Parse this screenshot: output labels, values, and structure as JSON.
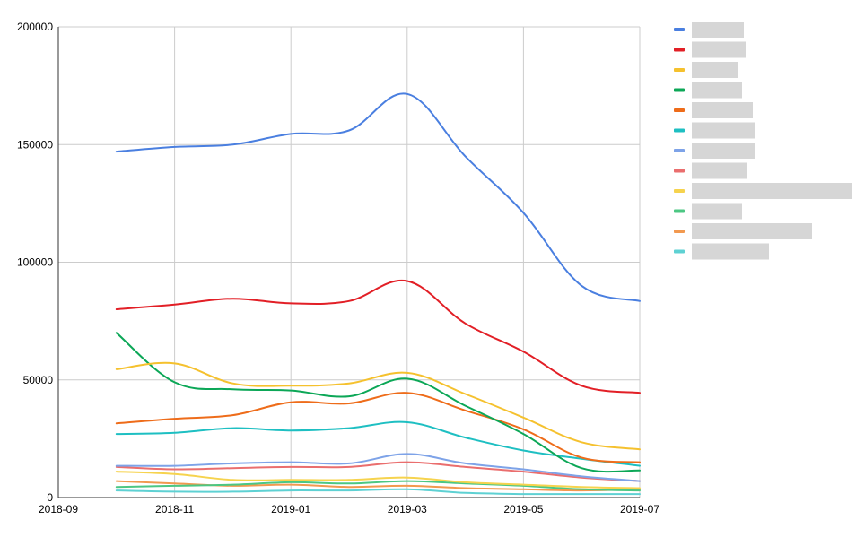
{
  "chart_data": {
    "type": "line",
    "title": "",
    "xlabel": "",
    "ylabel": "",
    "x_ticks": [
      "2018-09",
      "2018-11",
      "2019-01",
      "2019-03",
      "2019-05",
      "2019-07"
    ],
    "y_ticks": [
      "0",
      "50000",
      "100000",
      "150000",
      "200000"
    ],
    "ylim": [
      0,
      200000
    ],
    "xlim": [
      "2018-09",
      "2019-07"
    ],
    "x": [
      "2018-10",
      "2018-11",
      "2018-12",
      "2019-01",
      "2019-02",
      "2019-03",
      "2019-04",
      "2019-05",
      "2019-06",
      "2019-07"
    ],
    "grid": true,
    "legend_position": "right",
    "series": [
      {
        "color": "#4a7fe0",
        "values": [
          147000,
          149000,
          150000,
          154500,
          156000,
          171500,
          145000,
          121000,
          90000,
          83500
        ]
      },
      {
        "color": "#e21f26",
        "values": [
          80000,
          82000,
          84500,
          82500,
          83500,
          92000,
          74000,
          62000,
          47500,
          44500
        ]
      },
      {
        "color": "#f5c12e",
        "values": [
          54500,
          57000,
          48500,
          47500,
          48500,
          53000,
          44000,
          34000,
          23500,
          20500
        ]
      },
      {
        "color": "#0ca757",
        "values": [
          70000,
          49000,
          46000,
          45500,
          43000,
          50500,
          39000,
          27000,
          12500,
          11500
        ]
      },
      {
        "color": "#ee6c1a",
        "values": [
          31500,
          33500,
          35000,
          40500,
          40000,
          44500,
          37000,
          29000,
          17000,
          15000
        ]
      },
      {
        "color": "#1ebfc2",
        "values": [
          27000,
          27500,
          29500,
          28500,
          29500,
          32000,
          25500,
          20000,
          16500,
          13500
        ]
      },
      {
        "color": "#7ea3e8",
        "values": [
          13500,
          13500,
          14500,
          15000,
          14500,
          18500,
          14500,
          12000,
          9000,
          7000
        ]
      },
      {
        "color": "#ea6e6e",
        "values": [
          13000,
          12000,
          12500,
          13000,
          13000,
          15000,
          13000,
          11000,
          8500,
          7000
        ]
      },
      {
        "color": "#f6d34e",
        "values": [
          11000,
          10000,
          7500,
          7500,
          7500,
          8500,
          6500,
          5500,
          4500,
          4000
        ]
      },
      {
        "color": "#4cc783",
        "values": [
          4500,
          5000,
          5500,
          6500,
          6000,
          7000,
          6000,
          5000,
          3500,
          3000
        ]
      },
      {
        "color": "#f2994f",
        "values": [
          7000,
          6000,
          5000,
          5500,
          4500,
          5000,
          4000,
          3500,
          3000,
          3500
        ]
      },
      {
        "color": "#5ed1d3",
        "values": [
          3000,
          2500,
          2500,
          3000,
          3000,
          3500,
          2000,
          1500,
          1500,
          1500
        ]
      }
    ]
  }
}
